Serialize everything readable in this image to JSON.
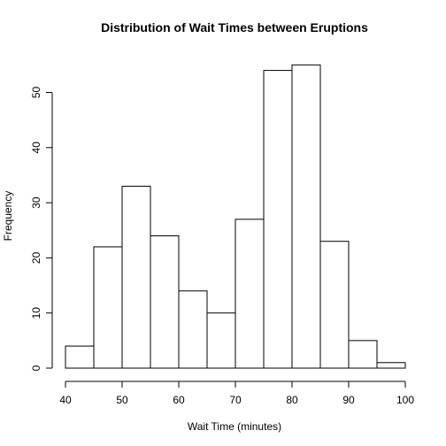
{
  "chart_data": {
    "type": "bar",
    "title": "Distribution of Wait Times between Eruptions",
    "xlabel": "Wait Time (minutes)",
    "ylabel": "Frequency",
    "bins": [
      {
        "x0": 40,
        "x1": 45,
        "count": 4
      },
      {
        "x0": 45,
        "x1": 50,
        "count": 22
      },
      {
        "x0": 50,
        "x1": 55,
        "count": 33
      },
      {
        "x0": 55,
        "x1": 60,
        "count": 24
      },
      {
        "x0": 60,
        "x1": 65,
        "count": 14
      },
      {
        "x0": 65,
        "x1": 70,
        "count": 10
      },
      {
        "x0": 70,
        "x1": 75,
        "count": 27
      },
      {
        "x0": 75,
        "x1": 80,
        "count": 54
      },
      {
        "x0": 80,
        "x1": 85,
        "count": 55
      },
      {
        "x0": 85,
        "x1": 90,
        "count": 23
      },
      {
        "x0": 90,
        "x1": 95,
        "count": 5
      },
      {
        "x0": 95,
        "x1": 100,
        "count": 1
      }
    ],
    "xlim": [
      40,
      100
    ],
    "ylim": [
      0,
      55
    ],
    "x_ticks": [
      40,
      50,
      60,
      70,
      80,
      90,
      100
    ],
    "y_ticks": [
      0,
      10,
      20,
      30,
      40,
      50
    ],
    "grid": false,
    "bar_fill": "#ffffff",
    "bar_stroke": "#000000"
  }
}
